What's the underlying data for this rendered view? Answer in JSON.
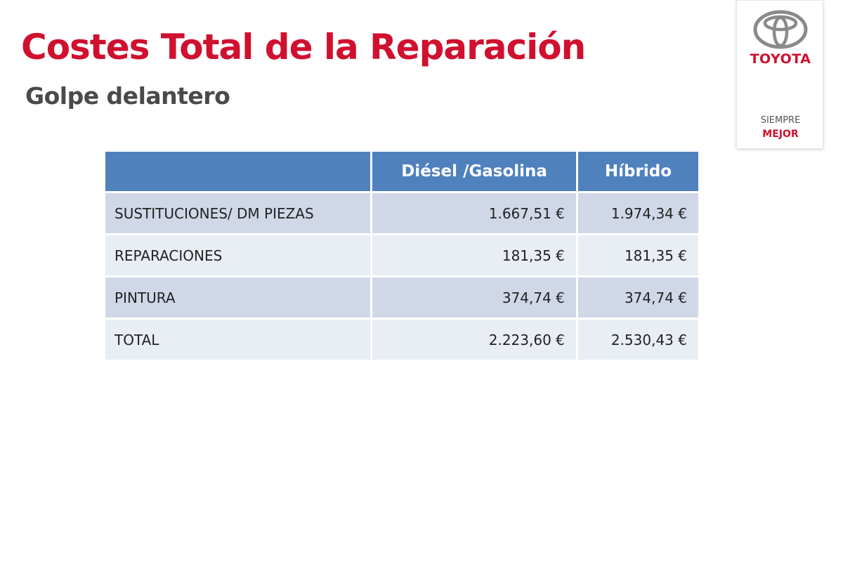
{
  "slide": {
    "title": "Costes Total de la Reparación",
    "subtitle": "Golpe delantero"
  },
  "logo": {
    "emblem_icon": "toyota-emblem-icon",
    "wordmark": "TOYOTA",
    "tagline_line1": "SIEMPRE",
    "tagline_line2": "MEJOR"
  },
  "table": {
    "headers": [
      "",
      "Diésel /Gasolina",
      "Híbrido"
    ],
    "rows": [
      {
        "label": "SUSTITUCIONES/ DM PIEZAS",
        "diesel": "1.667,51 €",
        "hibrido": "1.974,34 €"
      },
      {
        "label": "REPARACIONES",
        "diesel": "181,35 €",
        "hibrido": "181,35 €"
      },
      {
        "label": "PINTURA",
        "diesel": "374,74 €",
        "hibrido": "374,74 €"
      },
      {
        "label": "TOTAL",
        "diesel": "2.223,60 €",
        "hibrido": "2.530,43 €"
      }
    ]
  },
  "colors": {
    "brand_red": "#d0102e",
    "header_blue": "#4f81bd",
    "row_dark": "#d0d8e8",
    "row_light": "#e9edf4"
  }
}
